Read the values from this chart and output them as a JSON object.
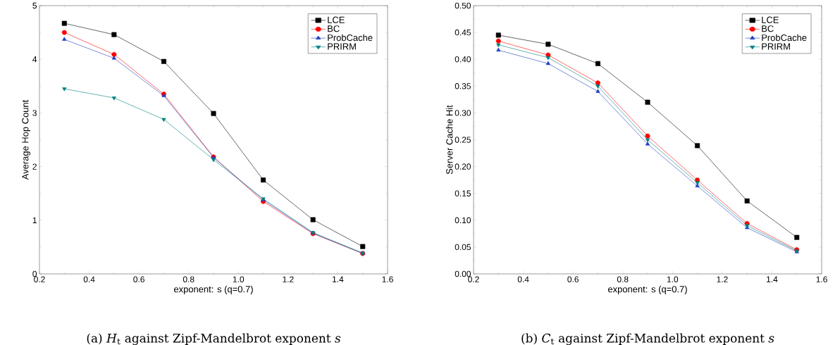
{
  "chart_data": [
    {
      "type": "line",
      "xlabel": "exponent: s (q=0.7)",
      "ylabel": "Average Hop Count",
      "annotations": [
        "(a) *H*$_{t}$ against Zipf-Mandelbrot exponent *s*"
      ],
      "x": [
        0.3,
        0.5,
        0.7,
        0.9,
        1.1,
        1.3,
        1.5
      ],
      "xlim": [
        0.2,
        1.6
      ],
      "xticks": [
        0.2,
        0.4,
        0.6,
        0.8,
        {
          "value": 1,
          "label": "1.0"
        },
        1.2,
        1.4,
        1.6
      ],
      "ylim": [
        0,
        5
      ],
      "yticks": [
        0,
        1,
        2,
        3,
        4,
        5
      ],
      "grid": false,
      "legend": "top right",
      "line_style": "solid",
      "series": [
        {
          "name": "LCE",
          "color": "#000000",
          "marker": "square",
          "values": [
            4.67,
            4.46,
            3.96,
            2.99,
            1.75,
            1.01,
            0.51
          ]
        },
        {
          "name": "BC",
          "color": "#ff0000",
          "marker": "circle",
          "values": [
            4.5,
            4.09,
            3.35,
            2.18,
            1.35,
            0.75,
            0.38
          ]
        },
        {
          "name": "ProbCache",
          "color": "#2040c0",
          "marker": "triangle",
          "values": [
            4.37,
            4.02,
            3.32,
            2.17,
            1.38,
            0.76,
            0.38
          ]
        },
        {
          "name": "PRIRM",
          "color": "#008080",
          "marker": "triangle-down",
          "values": [
            3.45,
            3.28,
            2.88,
            2.13,
            1.4,
            0.77,
            0.39
          ]
        }
      ]
    },
    {
      "type": "line",
      "xlabel": "exponent: s (q=0.7)",
      "ylabel": "Server Cache Hit",
      "annotations": [
        "(b) *C*$_{t}$ against Zipf-Mandelbrot exponent *s*"
      ],
      "x": [
        0.3,
        0.5,
        0.7,
        0.9,
        1.1,
        1.3,
        1.5
      ],
      "xlim": [
        0.2,
        1.6
      ],
      "xticks": [
        0.2,
        0.4,
        0.6,
        0.8,
        {
          "value": 1,
          "label": "1.0"
        },
        1.2,
        1.4,
        1.6
      ],
      "ylim": [
        0,
        0.5
      ],
      "yticks": [
        {
          "value": 0,
          "label": "0.00"
        },
        {
          "value": 0.05,
          "label": "0.05"
        },
        {
          "value": 0.1,
          "label": "0.10"
        },
        {
          "value": 0.15,
          "label": "0.15"
        },
        {
          "value": 0.2,
          "label": "0.20"
        },
        {
          "value": 0.25,
          "label": "0.25"
        },
        {
          "value": 0.3,
          "label": "0.30"
        },
        {
          "value": 0.35,
          "label": "0.35"
        },
        {
          "value": 0.4,
          "label": "0.40"
        },
        {
          "value": 0.45,
          "label": "0.45"
        },
        {
          "value": 0.5,
          "label": "0.50"
        }
      ],
      "grid": false,
      "legend": "top right",
      "line_style": "solid",
      "series": [
        {
          "name": "LCE",
          "color": "#000000",
          "marker": "square",
          "values": [
            0.445,
            0.428,
            0.392,
            0.32,
            0.239,
            0.136,
            0.068
          ]
        },
        {
          "name": "BC",
          "color": "#ff0000",
          "marker": "circle",
          "values": [
            0.434,
            0.408,
            0.356,
            0.257,
            0.175,
            0.094,
            0.045
          ]
        },
        {
          "name": "ProbCache",
          "color": "#2040c0",
          "marker": "triangle",
          "values": [
            0.417,
            0.392,
            0.34,
            0.242,
            0.164,
            0.086,
            0.041
          ]
        },
        {
          "name": "PRIRM",
          "color": "#008080",
          "marker": "triangle-down",
          "values": [
            0.427,
            0.403,
            0.35,
            0.25,
            0.17,
            0.09,
            0.043
          ]
        }
      ]
    }
  ]
}
